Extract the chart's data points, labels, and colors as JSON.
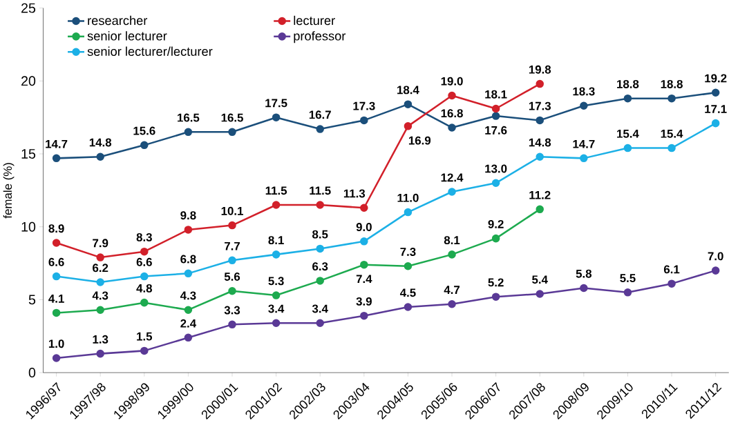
{
  "chart_data": {
    "type": "line",
    "ylabel": "female (%)",
    "categories": [
      "1996/97",
      "1997/98",
      "1998/99",
      "1999/00",
      "2000/01",
      "2001/02",
      "2002/03",
      "2003/04",
      "2004/05",
      "2005/06",
      "2006/07",
      "2007/08",
      "2008/09",
      "2009/10",
      "2010/11",
      "2011/12"
    ],
    "series": [
      {
        "name": "researcher",
        "color": "#1b4f7b",
        "values": [
          14.7,
          14.8,
          15.6,
          16.5,
          16.5,
          17.5,
          16.7,
          17.3,
          18.4,
          16.8,
          17.6,
          17.3,
          18.3,
          18.8,
          18.8,
          19.2
        ],
        "value_labels": [
          "14.7",
          "14.8",
          "15.6",
          "16.5",
          "16.5",
          "17.5",
          "16.7",
          "17.3",
          "18.4",
          "16.8",
          "17.6",
          "17.3",
          "18.3",
          "18.8",
          "18.8",
          "19.2"
        ]
      },
      {
        "name": "lecturer",
        "color": "#d2202a",
        "values": [
          8.9,
          7.9,
          8.3,
          9.8,
          10.1,
          11.5,
          11.5,
          11.3,
          16.9,
          19.0,
          18.1,
          19.8,
          null,
          null,
          null,
          null
        ],
        "value_labels": [
          "8.9",
          "7.9",
          "8.3",
          "9.8",
          "10.1",
          "11.5",
          "11.5",
          "11.3",
          "16.9",
          "19.0",
          "18.1",
          "19.8",
          null,
          null,
          null,
          null
        ]
      },
      {
        "name": "senior lecturer",
        "color": "#1daa4f",
        "values": [
          4.1,
          4.3,
          4.8,
          4.3,
          5.6,
          5.3,
          6.3,
          7.4,
          7.3,
          8.1,
          9.2,
          11.2,
          null,
          null,
          null,
          null
        ],
        "value_labels": [
          "4.1",
          "4.3",
          "4.8",
          "4.3",
          "5.6",
          "5.3",
          "6.3",
          "7.4",
          "7.3",
          "8.1",
          "9.2",
          "11.2",
          null,
          null,
          null,
          null
        ]
      },
      {
        "name": "professor",
        "color": "#5a3996",
        "values": [
          1.0,
          1.3,
          1.5,
          2.4,
          3.3,
          3.4,
          3.4,
          3.9,
          4.5,
          4.7,
          5.2,
          5.4,
          5.8,
          5.5,
          6.1,
          7.0
        ],
        "value_labels": [
          "1.0",
          "1.3",
          "1.5",
          "2.4",
          "3.3",
          "3.4",
          "3.4",
          "3.9",
          "4.5",
          "4.7",
          "5.2",
          "5.4",
          "5.8",
          "5.5",
          "6.1",
          "7.0"
        ]
      },
      {
        "name": "senior lecturer/lecturer",
        "color": "#1cb0e6",
        "values": [
          6.6,
          6.2,
          6.6,
          6.8,
          7.7,
          8.1,
          8.5,
          9.0,
          11.0,
          12.4,
          13.0,
          14.8,
          14.7,
          15.4,
          15.4,
          17.1
        ],
        "value_labels": [
          "6.6",
          "6.2",
          "6.6",
          "6.8",
          "7.7",
          "8.1",
          "8.5",
          "9.0",
          "11.0",
          "12.4",
          "13.0",
          "14.8",
          "14.7",
          "15.4",
          "15.4",
          "17.1"
        ]
      }
    ],
    "ylim": [
      0,
      25
    ],
    "yticks": [
      0,
      5,
      10,
      15,
      20,
      25
    ],
    "grid": false,
    "legend": "top left",
    "marker": "circle",
    "line_style": "solid"
  }
}
